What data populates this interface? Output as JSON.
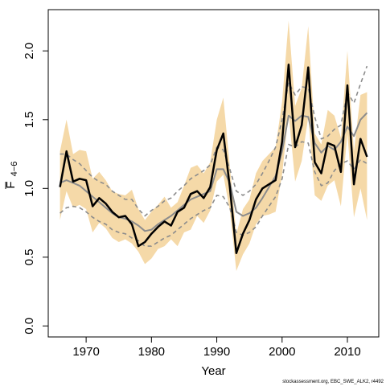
{
  "chart_data": {
    "type": "line",
    "xlabel": "Year",
    "ylabel_main": "F",
    "ylabel_sub": "4−6",
    "xlim": [
      1964.2,
      2014.8
    ],
    "ylim": [
      -0.08,
      2.3
    ],
    "xticks": [
      1970,
      1980,
      1990,
      2000,
      2010
    ],
    "yticks": [
      "0.0",
      "0.5",
      "1.0",
      "1.5",
      "2.0"
    ],
    "ytick_values": [
      0,
      0.5,
      1.0,
      1.5,
      2.0
    ],
    "colors": {
      "band": "#f5d9a8",
      "estimate": "#000000",
      "comparison": "#8c8c8c"
    },
    "x": [
      1966,
      1967,
      1968,
      1969,
      1970,
      1971,
      1972,
      1973,
      1974,
      1975,
      1976,
      1977,
      1978,
      1979,
      1980,
      1981,
      1982,
      1983,
      1984,
      1985,
      1986,
      1987,
      1988,
      1989,
      1990,
      1991,
      1992,
      1993,
      1994,
      1995,
      1996,
      1997,
      1998,
      1999,
      2000,
      2001,
      2002,
      2003,
      2004,
      2005,
      2006,
      2007,
      2008,
      2009,
      2010,
      2011,
      2012,
      2013
    ],
    "series": [
      {
        "role": "band",
        "lower": [
          0.77,
          0.98,
          0.86,
          0.88,
          0.85,
          0.68,
          0.75,
          0.71,
          0.64,
          0.61,
          0.63,
          0.6,
          0.54,
          0.45,
          0.49,
          0.56,
          0.58,
          0.63,
          0.58,
          0.68,
          0.7,
          0.8,
          0.75,
          0.84,
          1.05,
          1.1,
          0.84,
          0.4,
          0.52,
          0.6,
          0.74,
          0.8,
          0.81,
          0.83,
          1.1,
          1.55,
          1.05,
          1.2,
          1.52,
          0.95,
          0.91,
          1.02,
          1.06,
          0.87,
          1.4,
          0.79,
          1.0,
          0.77
        ],
        "upper": [
          1.27,
          1.5,
          1.25,
          1.28,
          1.27,
          1.07,
          1.12,
          1.06,
          0.98,
          0.96,
          0.95,
          0.99,
          0.85,
          0.77,
          0.83,
          0.88,
          0.94,
          0.86,
          0.9,
          1.02,
          1.15,
          1.17,
          1.11,
          1.19,
          1.5,
          1.66,
          1.16,
          0.67,
          0.85,
          0.92,
          1.11,
          1.2,
          1.25,
          1.3,
          1.63,
          2.22,
          1.6,
          1.73,
          2.18,
          1.4,
          1.32,
          1.57,
          1.53,
          1.37,
          2.0,
          1.27,
          1.68,
          1.7
        ]
      },
      {
        "role": "estimate",
        "values": [
          1.01,
          1.27,
          1.05,
          1.07,
          1.06,
          0.87,
          0.93,
          0.89,
          0.83,
          0.79,
          0.8,
          0.74,
          0.58,
          0.61,
          0.67,
          0.72,
          0.76,
          0.73,
          0.83,
          0.86,
          0.96,
          0.98,
          0.93,
          1.01,
          1.28,
          1.4,
          1.01,
          0.53,
          0.67,
          0.77,
          0.92,
          1.0,
          1.03,
          1.06,
          1.34,
          1.9,
          1.3,
          1.46,
          1.88,
          1.19,
          1.11,
          1.33,
          1.31,
          1.12,
          1.75,
          1.03,
          1.36,
          1.23
        ]
      },
      {
        "role": "comparison",
        "values": [
          1.04,
          1.06,
          1.04,
          1.02,
          0.98,
          0.94,
          0.9,
          0.86,
          0.82,
          0.79,
          0.78,
          0.76,
          0.73,
          0.69,
          0.7,
          0.74,
          0.77,
          0.8,
          0.84,
          0.88,
          0.92,
          0.94,
          0.96,
          0.98,
          1.14,
          1.14,
          1.04,
          0.83,
          0.8,
          0.82,
          0.86,
          0.93,
          1.01,
          1.09,
          1.27,
          1.53,
          1.49,
          1.53,
          1.52,
          1.33,
          1.26,
          1.31,
          1.28,
          1.34,
          1.45,
          1.38,
          1.5,
          1.55
        ]
      },
      {
        "role": "comparison-upper",
        "values": [
          1.25,
          1.25,
          1.21,
          1.18,
          1.13,
          1.08,
          1.05,
          1.03,
          0.98,
          0.95,
          0.92,
          0.92,
          0.85,
          0.8,
          0.84,
          0.87,
          0.91,
          0.93,
          0.98,
          1.02,
          1.07,
          1.1,
          1.13,
          1.17,
          1.3,
          1.28,
          1.14,
          0.98,
          0.95,
          0.98,
          1.03,
          1.11,
          1.2,
          1.3,
          1.5,
          1.77,
          1.68,
          1.74,
          1.73,
          1.52,
          1.36,
          1.38,
          1.43,
          1.46,
          1.7,
          1.62,
          1.76,
          1.89
        ]
      },
      {
        "role": "comparison-lower",
        "values": [
          0.82,
          0.86,
          0.87,
          0.86,
          0.83,
          0.79,
          0.76,
          0.74,
          0.7,
          0.68,
          0.67,
          0.64,
          0.62,
          0.58,
          0.58,
          0.61,
          0.64,
          0.66,
          0.7,
          0.74,
          0.78,
          0.81,
          0.84,
          0.86,
          0.95,
          0.94,
          0.86,
          0.68,
          0.66,
          0.68,
          0.72,
          0.8,
          0.87,
          0.94,
          1.07,
          1.32,
          1.3,
          1.34,
          1.33,
          1.12,
          1.02,
          1.04,
          1.13,
          1.18,
          1.2,
          1.14,
          1.21,
          1.18
        ]
      }
    ],
    "grid": false,
    "legend": "none"
  },
  "credit_text": "stockassessment.org, EBC_SWE_ALK2, r4492"
}
